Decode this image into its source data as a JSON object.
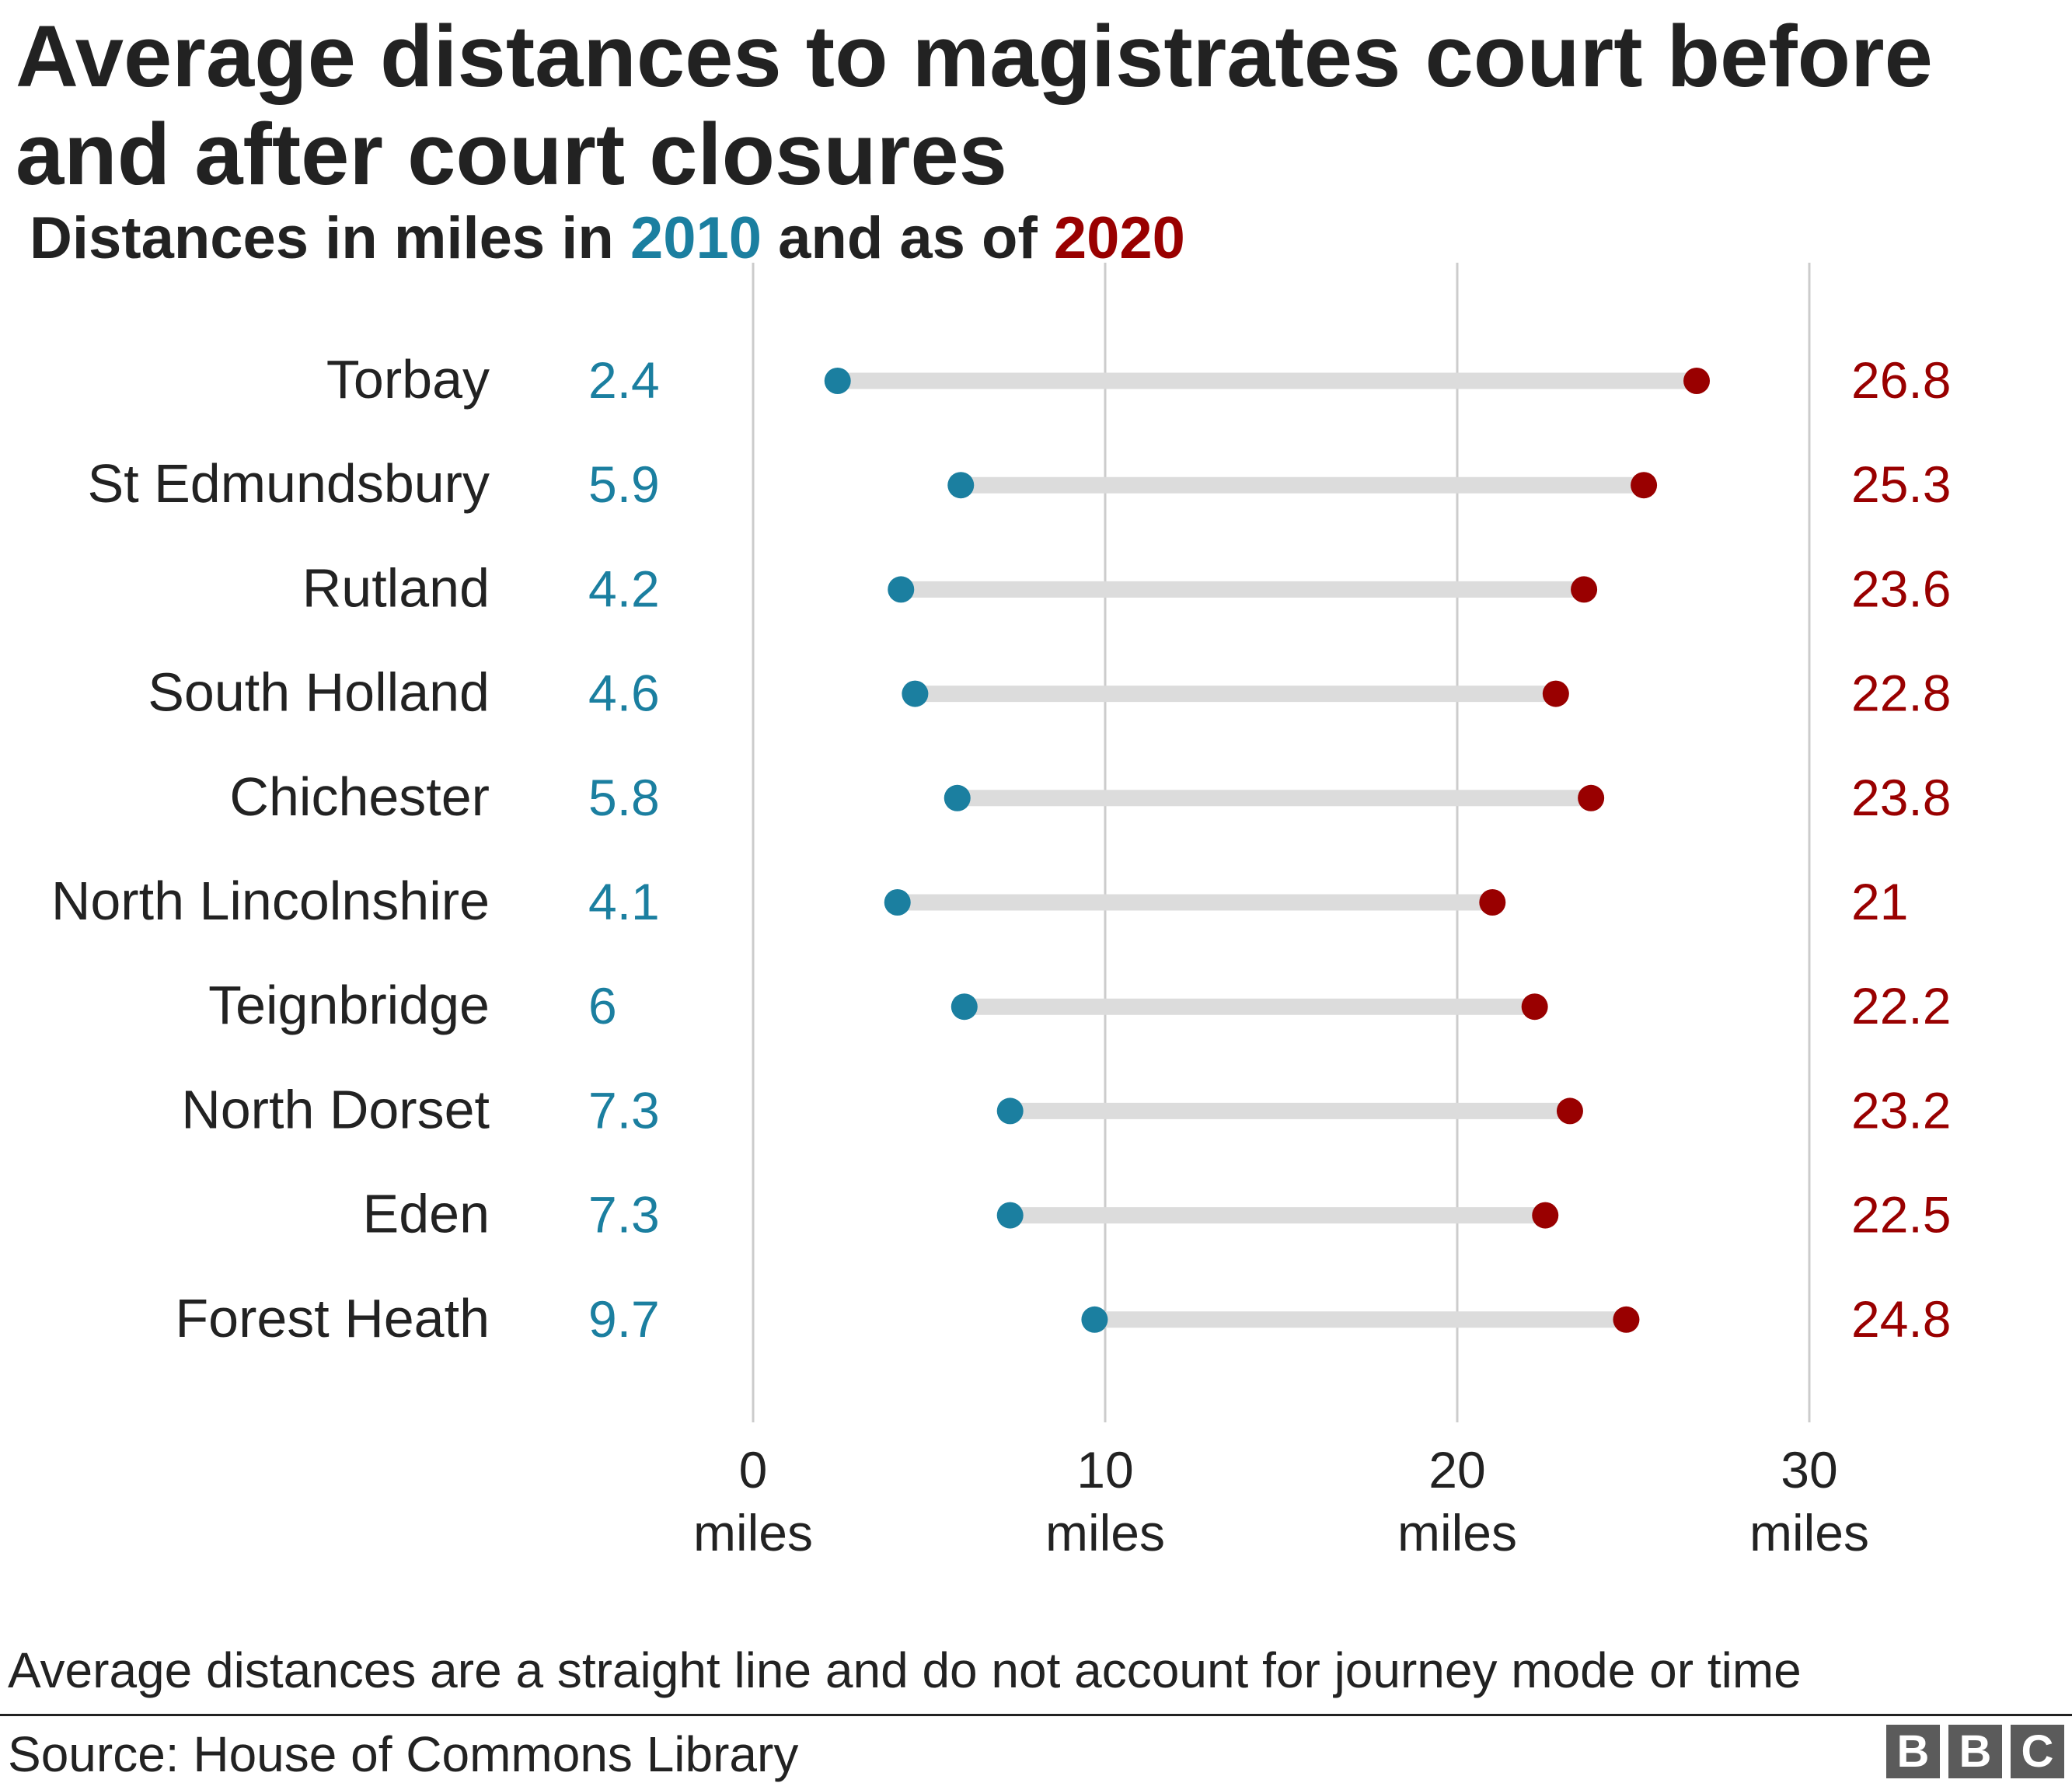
{
  "title": "Average distances to magistrates court before and after court closures",
  "subtitle": {
    "prefix": "Distances in miles in ",
    "year_2010": "2010",
    "middle": " and as of ",
    "year_2020": "2020"
  },
  "colors": {
    "y2010": "#1b7fa0",
    "y2020": "#990000",
    "connector": "#dcdcdc",
    "gridline": "#cccccc",
    "text": "#222222"
  },
  "chart_data": {
    "type": "dumbbell",
    "unit": "miles",
    "categories": [
      "Torbay",
      "St Edmundsbury",
      "Rutland",
      "South Holland",
      "Chichester",
      "North Lincolnshire",
      "Teignbridge",
      "North Dorset",
      "Eden",
      "Forest Heath"
    ],
    "series": [
      {
        "name": "2010",
        "values": [
          2.4,
          5.9,
          4.2,
          4.6,
          5.8,
          4.1,
          6,
          7.3,
          7.3,
          9.7
        ],
        "labels": [
          "2.4",
          "5.9",
          "4.2",
          "4.6",
          "5.8",
          "4.1",
          "6",
          "7.3",
          "7.3",
          "9.7"
        ]
      },
      {
        "name": "2020",
        "values": [
          26.8,
          25.3,
          23.6,
          22.8,
          23.8,
          21,
          22.2,
          23.2,
          22.5,
          24.8
        ],
        "labels": [
          "26.8",
          "25.3",
          "23.6",
          "22.8",
          "23.8",
          "21",
          "22.2",
          "23.2",
          "22.5",
          "24.8"
        ]
      }
    ],
    "x_ticks": [
      0,
      10,
      20,
      30
    ],
    "x_tick_labels": [
      "0",
      "10",
      "20",
      "30"
    ],
    "x_tick_unit_label": "miles",
    "xlim": [
      0,
      30
    ],
    "grid": true,
    "legend": "none"
  },
  "footnote": "Average distances are a straight line and do not account for journey mode or time",
  "source": "Source: House of Commons Library",
  "logo": {
    "letters": [
      "B",
      "B",
      "C"
    ]
  }
}
